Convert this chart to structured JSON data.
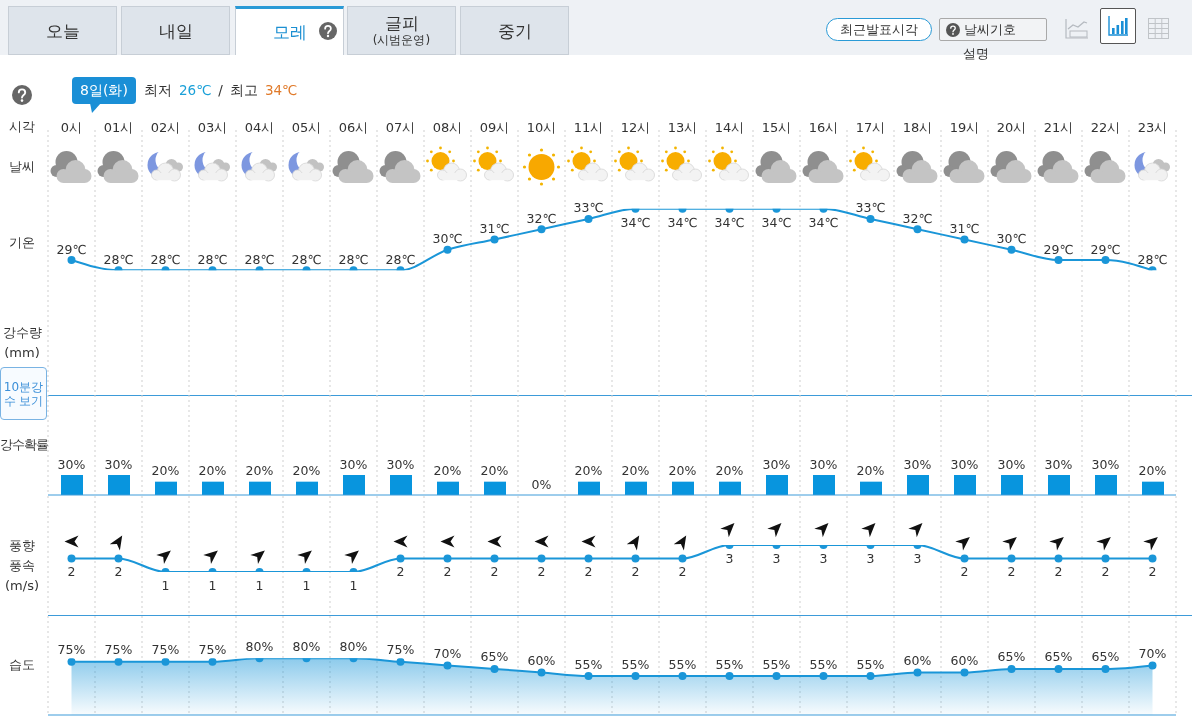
{
  "chart_data": [
    {
      "type": "other",
      "annotations": [
        "오늘",
        "내일",
        "모레",
        "글피",
        "(시범운영)",
        "중기",
        "최근발표시각",
        "날씨기호",
        "설명",
        "8일(화)",
        "최저",
        "26℃",
        "/",
        "최고",
        "34℃"
      ]
    },
    {
      "type": "line",
      "xlabel": "시각",
      "ylabel": "기온",
      "annotations": [
        "날씨"
      ],
      "categories": [
        "0시",
        "01시",
        "02시",
        "03시",
        "04시",
        "05시",
        "06시",
        "07시",
        "08시",
        "09시",
        "10시",
        "11시",
        "12시",
        "13시",
        "14시",
        "15시",
        "16시",
        "17시",
        "18시",
        "19시",
        "20시",
        "21시",
        "22시",
        "23시"
      ],
      "values": [
        29,
        28,
        28,
        28,
        28,
        28,
        28,
        28,
        30,
        31,
        32,
        33,
        34,
        34,
        34,
        34,
        34,
        33,
        32,
        31,
        30,
        29,
        29,
        28
      ],
      "value_labels": [
        "29℃",
        "28℃",
        "28℃",
        "28℃",
        "28℃",
        "28℃",
        "28℃",
        "28℃",
        "30℃",
        "31℃",
        "32℃",
        "33℃",
        "34℃",
        "34℃",
        "34℃",
        "34℃",
        "34℃",
        "33℃",
        "32℃",
        "31℃",
        "30℃",
        "29℃",
        "29℃",
        "28℃"
      ],
      "color": "#1a96d8",
      "marker": "circle",
      "tick_labels": "x",
      "grid": "x"
    },
    {
      "type": "other",
      "annotations": [
        "강수량 (mm)",
        "10분강수 보기"
      ]
    },
    {
      "type": "bar",
      "ylabel": "강수확률",
      "categories": [
        null,
        null,
        null,
        null,
        null,
        null,
        null,
        null,
        null,
        null,
        null,
        null,
        null,
        null,
        null,
        null,
        null,
        null,
        null,
        null,
        null,
        null,
        null,
        null
      ],
      "values": [
        30,
        30,
        20,
        20,
        20,
        20,
        30,
        30,
        20,
        20,
        0,
        20,
        20,
        20,
        20,
        30,
        30,
        20,
        30,
        30,
        30,
        30,
        30,
        20
      ],
      "value_labels": [
        "30%",
        "30%",
        "20%",
        "20%",
        "20%",
        "20%",
        "30%",
        "30%",
        "20%",
        "20%",
        "0%",
        "20%",
        "20%",
        "20%",
        "20%",
        "30%",
        "30%",
        "20%",
        "30%",
        "30%",
        "30%",
        "30%",
        "30%",
        "20%"
      ],
      "color": "#0895de",
      "tick_labels": false,
      "grid": "x"
    },
    {
      "type": "line",
      "ylabel": "풍향 풍속 (m/s)",
      "categories": [
        null,
        null,
        null,
        null,
        null,
        null,
        null,
        null,
        null,
        null,
        null,
        null,
        null,
        null,
        null,
        null,
        null,
        null,
        null,
        null,
        null,
        null,
        null,
        null
      ],
      "values": [
        2,
        2,
        1,
        1,
        1,
        1,
        1,
        2,
        2,
        2,
        2,
        2,
        2,
        2,
        3,
        3,
        3,
        3,
        3,
        2,
        2,
        2,
        2,
        2
      ],
      "data_labels": true,
      "color": "#1a96d8",
      "marker": "circle",
      "tick_labels": false,
      "grid": "x"
    },
    {
      "type": "area",
      "ylabel": "습도",
      "categories": [
        null,
        null,
        null,
        null,
        null,
        null,
        null,
        null,
        null,
        null,
        null,
        null,
        null,
        null,
        null,
        null,
        null,
        null,
        null,
        null,
        null,
        null,
        null,
        null
      ],
      "values": [
        75,
        75,
        75,
        75,
        80,
        80,
        80,
        75,
        70,
        65,
        60,
        55,
        55,
        55,
        55,
        55,
        55,
        55,
        60,
        60,
        65,
        65,
        65,
        70
      ],
      "value_labels": [
        "75%",
        "75%",
        "75%",
        "75%",
        "80%",
        "80%",
        "80%",
        "75%",
        "70%",
        "65%",
        "60%",
        "55%",
        "55%",
        "55%",
        "55%",
        "55%",
        "55%",
        "55%",
        "60%",
        "60%",
        "65%",
        "65%",
        "65%",
        "70%"
      ],
      "color": "#1a96d8",
      "marker": "circle",
      "tick_labels": false,
      "grid": "x"
    }
  ]
}
